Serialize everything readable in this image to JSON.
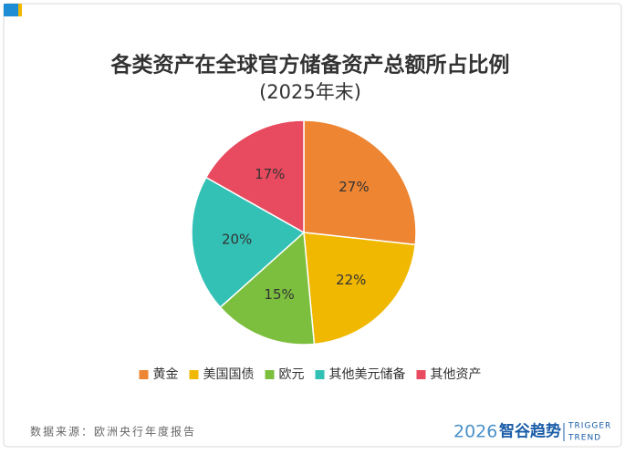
{
  "chart_data": {
    "type": "pie",
    "title": "各类资产在全球官方储备资产总额所占比例",
    "subtitle": "(2025年末)",
    "categories": [
      "黄金",
      "美国国债",
      "欧元",
      "其他美元储备",
      "其他资产"
    ],
    "values": [
      27,
      22,
      15,
      20,
      17
    ],
    "value_labels": [
      "27%",
      "22%",
      "15%",
      "20%",
      "17%"
    ],
    "colors": [
      "#ed8533",
      "#f0b800",
      "#7cbf3f",
      "#33c1b5",
      "#e84a5f"
    ],
    "legend": "bottom",
    "source": "数据来源：欧洲央行年度报告"
  },
  "brand": {
    "year": "2026",
    "name": "智谷趋势",
    "en_top": "TRIGGER",
    "en_bottom": "TREND"
  }
}
